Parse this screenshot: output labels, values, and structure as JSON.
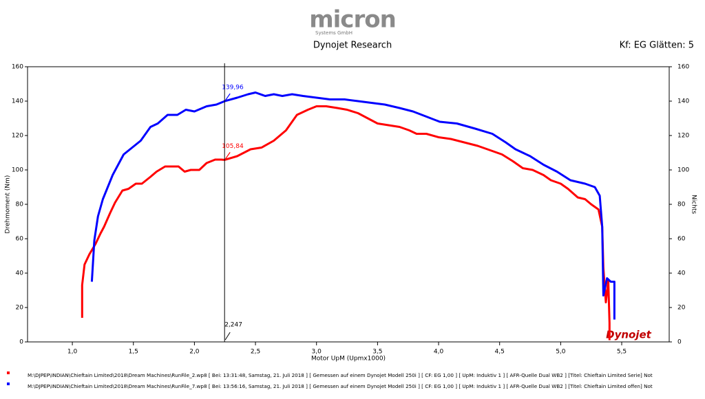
{
  "chart_data": {
    "type": "line",
    "logo": "micron",
    "logo_subtitle": "Systems GmbH",
    "title": "Dynojet Research",
    "subtitle": "Kf: EG Glätten: 5",
    "x_label": "Motor UpM (Upmx1000)",
    "y_label": "Drehmoment (Nm)",
    "y2_label": "Nichts",
    "watermark": "Dynojet",
    "grid": false,
    "xlim": [
      0.633,
      5.889
    ],
    "xticks": [
      {
        "value": 1.0,
        "label": "1,0"
      },
      {
        "value": 1.5,
        "label": "1,5"
      },
      {
        "value": 2.0,
        "label": "2,0"
      },
      {
        "value": 2.5,
        "label": "2,5"
      },
      {
        "value": 3.0,
        "label": "3,0"
      },
      {
        "value": 3.5,
        "label": "3,5"
      },
      {
        "value": 4.0,
        "label": "4,0"
      },
      {
        "value": 4.5,
        "label": "4,5"
      },
      {
        "value": 5.0,
        "label": "5,0"
      },
      {
        "value": 5.5,
        "label": "5,5"
      }
    ],
    "ylim": [
      0,
      160
    ],
    "yticks": [
      0,
      20,
      40,
      60,
      80,
      100,
      120,
      140,
      160
    ],
    "y2lim": [
      0,
      160
    ],
    "y2ticks": [
      0,
      20,
      40,
      60,
      80,
      100,
      120,
      140,
      160
    ],
    "cursor": {
      "value": 2.247,
      "label": "2,247"
    },
    "annotations": [
      {
        "x": 2.247,
        "y": 139.96,
        "label": "139,96",
        "color": "#0000ff"
      },
      {
        "x": 2.247,
        "y": 105.84,
        "label": "105,84",
        "color": "#ff0000"
      }
    ],
    "series": [
      {
        "name": "M:\\DJPEP\\INDIAN\\Chieftain Limited\\2018\\Dream Machines\\RunFile_2.wp8  [ Bei: 13:31:48, Samstag, 21. Juli 2018 ] [ Gemessen auf einem Dynojet Modell 250i ] [ CF: EG 1,00 ] [ UpM: Induktiv 1 ] [ AFR-Quelle  Dual WB2 ] [Titel: Chieftain Limited Serie] Not",
        "color": "#ff0000",
        "x": [
          1.08,
          1.08,
          1.1,
          1.14,
          1.19,
          1.23,
          1.26,
          1.31,
          1.35,
          1.41,
          1.46,
          1.52,
          1.57,
          1.64,
          1.69,
          1.76,
          1.87,
          1.92,
          1.97,
          2.04,
          2.1,
          2.17,
          2.22,
          2.247,
          2.35,
          2.46,
          2.55,
          2.65,
          2.75,
          2.84,
          2.93,
          3.0,
          3.08,
          3.17,
          3.25,
          3.34,
          3.42,
          3.5,
          3.59,
          3.68,
          3.76,
          3.82,
          3.9,
          4.0,
          4.1,
          4.21,
          4.32,
          4.44,
          4.52,
          4.61,
          4.69,
          4.77,
          4.86,
          4.92,
          5.0,
          5.06,
          5.14,
          5.2,
          5.25,
          5.31,
          5.34,
          5.35,
          5.37,
          5.39,
          5.4,
          5.4
        ],
        "values": [
          14,
          33,
          45,
          51,
          57,
          63,
          67,
          75,
          81,
          88,
          89,
          92,
          92,
          96,
          99,
          102,
          102,
          99,
          100,
          100,
          104,
          106,
          106,
          105.84,
          108,
          112,
          113,
          117,
          123,
          132,
          135,
          137,
          137,
          136,
          135,
          133,
          130,
          127,
          126,
          125,
          123,
          121,
          121,
          119,
          118,
          116,
          114,
          111,
          109,
          105,
          101,
          100,
          97,
          94,
          92,
          89,
          84,
          83,
          80,
          77,
          67,
          43,
          23,
          36,
          11,
          1
        ]
      },
      {
        "name": "M:\\DJPEP\\INDIAN\\Chieftain Limited\\2018\\Dream Machines\\RunFile_7.wp8  [ Bei: 13:56:16, Samstag, 21. Juli 2018 ] [ Gemessen auf einem Dynojet Modell 250i ] [ CF: EG 1,00 ] [ UpM: Induktiv 1 ] [ AFR-Quelle  Dual WB2 ] [Titel: Chieftain Limited offen] Not",
        "color": "#0000ff",
        "x": [
          1.16,
          1.18,
          1.21,
          1.25,
          1.33,
          1.42,
          1.56,
          1.64,
          1.7,
          1.78,
          1.86,
          1.93,
          2.0,
          2.1,
          2.18,
          2.247,
          2.35,
          2.44,
          2.5,
          2.58,
          2.65,
          2.72,
          2.8,
          2.89,
          3.0,
          3.11,
          3.23,
          3.34,
          3.45,
          3.56,
          3.68,
          3.79,
          3.9,
          4.01,
          4.15,
          4.3,
          4.44,
          4.55,
          4.63,
          4.75,
          4.86,
          4.97,
          5.08,
          5.2,
          5.28,
          5.32,
          5.34,
          5.35,
          5.38,
          5.41,
          5.44,
          5.44
        ],
        "values": [
          35,
          59,
          73,
          83,
          97,
          109,
          117,
          125,
          127,
          132,
          132,
          135,
          134,
          137,
          138,
          139.96,
          142,
          144,
          145,
          143,
          144,
          143,
          144,
          143,
          142,
          141,
          141,
          140,
          139,
          138,
          136,
          134,
          131,
          128,
          127,
          124,
          121,
          116,
          112,
          108,
          103,
          99,
          94,
          92,
          90,
          85,
          67,
          27,
          37,
          35,
          35,
          13
        ]
      }
    ]
  }
}
